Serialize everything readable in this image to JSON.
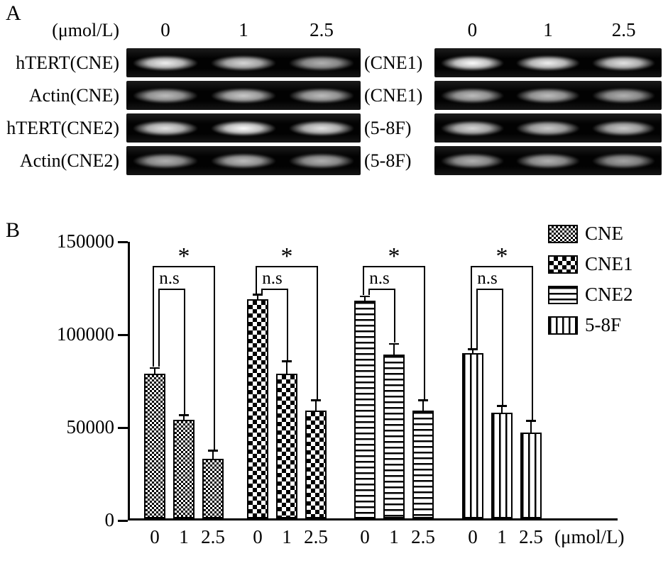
{
  "colors": {
    "foreground": "#000000",
    "background": "#ffffff"
  },
  "panel_a": {
    "label": "A",
    "left": {
      "header_unit": "(μmol/L)",
      "doses": [
        "0",
        "1",
        "2.5"
      ],
      "rows": [
        {
          "label": "hTERT(CNE)",
          "intensities": [
            0.95,
            0.85,
            0.7
          ]
        },
        {
          "label": "Actin(CNE)",
          "intensities": [
            0.75,
            0.8,
            0.75
          ]
        },
        {
          "label": "hTERT(CNE2)",
          "intensities": [
            0.9,
            1.0,
            0.9
          ]
        },
        {
          "label": "Actin(CNE2)",
          "intensities": [
            0.7,
            0.75,
            0.7
          ]
        }
      ]
    },
    "right": {
      "doses": [
        "0",
        "1",
        "2.5"
      ],
      "rows": [
        {
          "label": "(CNE1)",
          "intensities": [
            1.0,
            0.95,
            0.9
          ]
        },
        {
          "label": "(CNE1)",
          "intensities": [
            0.75,
            0.75,
            0.7
          ]
        },
        {
          "label": "(5-8F)",
          "intensities": [
            0.85,
            0.8,
            0.8
          ]
        },
        {
          "label": "(5-8F)",
          "intensities": [
            0.7,
            0.7,
            0.65
          ]
        }
      ]
    }
  },
  "panel_b": {
    "label": "B"
  },
  "chart_data": {
    "type": "bar",
    "title": "",
    "xlabel": "",
    "ylabel": "",
    "x_unit": "(μmol/L)",
    "ylim": [
      0,
      150000
    ],
    "yticks": [
      0,
      50000,
      100000,
      150000
    ],
    "categories": [
      "0",
      "1",
      "2.5"
    ],
    "series": [
      {
        "name": "CNE",
        "pattern": "fine-check",
        "values": [
          78000,
          53000,
          32000
        ],
        "errors": [
          2500,
          2000,
          4000
        ]
      },
      {
        "name": "CNE1",
        "pattern": "checker",
        "values": [
          118000,
          78000,
          58000
        ],
        "errors": [
          2000,
          6000,
          5000
        ]
      },
      {
        "name": "CNE2",
        "pattern": "hlines",
        "values": [
          117000,
          88000,
          58000
        ],
        "errors": [
          2000,
          5500,
          5000
        ]
      },
      {
        "name": "5-8F",
        "pattern": "vlines",
        "values": [
          89000,
          57000,
          46000
        ],
        "errors": [
          1500,
          3000,
          6000
        ]
      }
    ],
    "legend": [
      "CNE",
      "CNE1",
      "CNE2",
      "5-8F"
    ],
    "legend_position": "top-right",
    "grid": false,
    "annotations": {
      "ns_label": "n.s",
      "star_label": "*",
      "ns_y": 125000,
      "star_y": 137000
    }
  }
}
